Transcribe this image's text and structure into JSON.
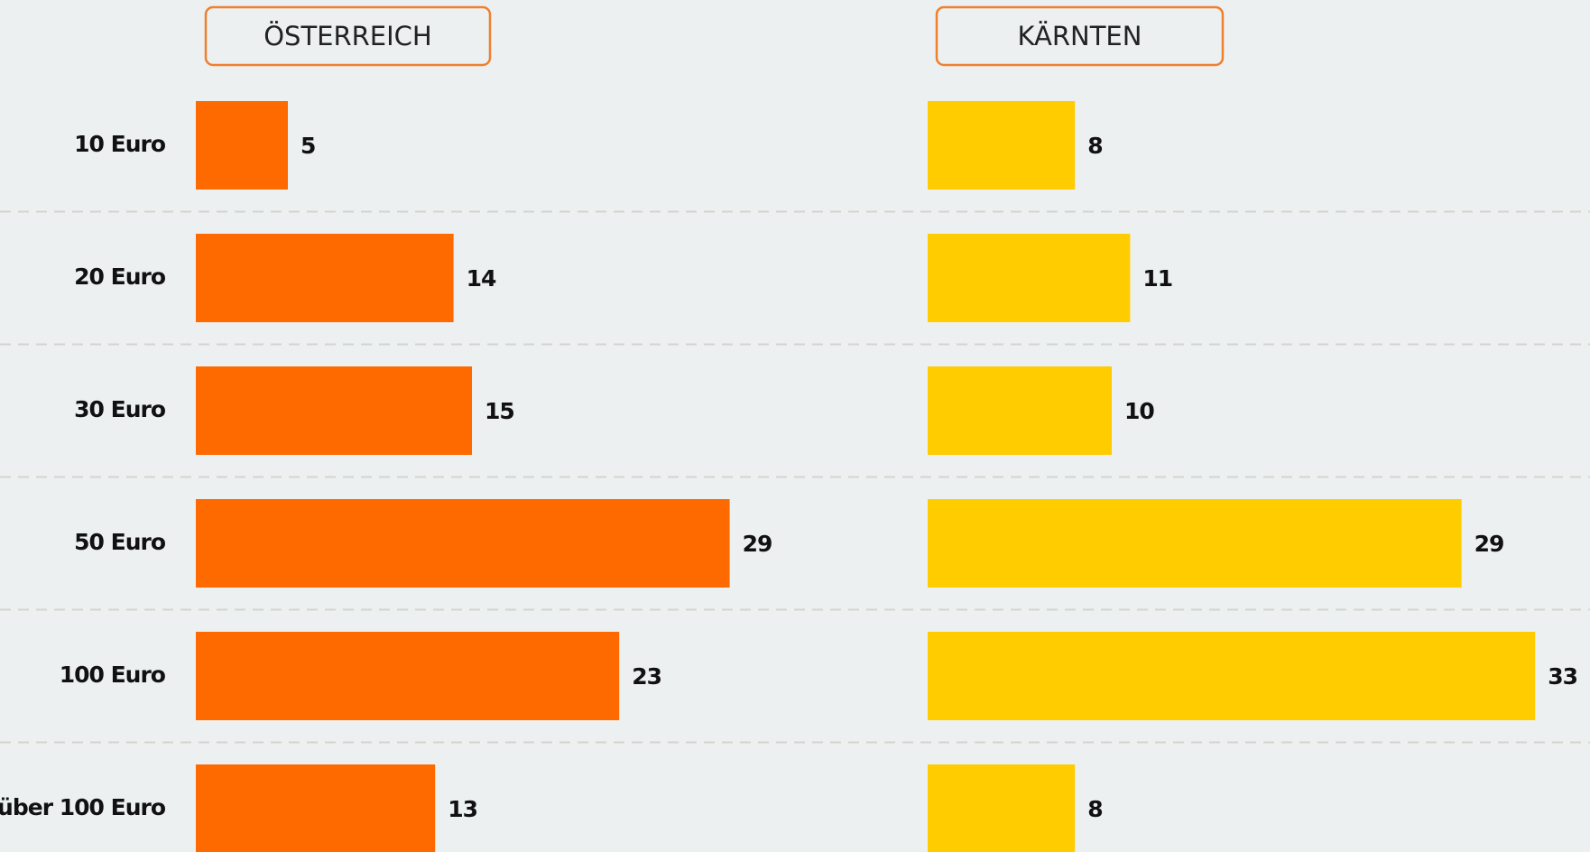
{
  "chart_data": {
    "type": "bar",
    "orientation": "horizontal",
    "categories": [
      "10 Euro",
      "20 Euro",
      "30 Euro",
      "50 Euro",
      "100 Euro",
      "über 100 Euro"
    ],
    "series": [
      {
        "name": "ÖSTERREICH",
        "color": "#ff6a00",
        "values": [
          5,
          14,
          15,
          29,
          23,
          13
        ]
      },
      {
        "name": "KÄRNTEN",
        "color": "#ffcc00",
        "values": [
          8,
          11,
          10,
          29,
          33,
          8
        ]
      }
    ],
    "grid": true
  }
}
